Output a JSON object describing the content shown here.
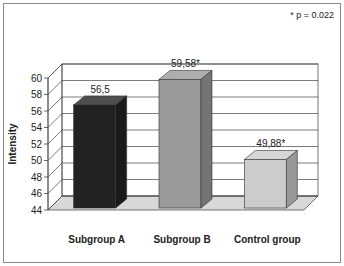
{
  "chart_data": {
    "type": "bar",
    "annotation": "* p = 0.022",
    "y_label": "Intensity",
    "categories": [
      "Subgroup A",
      "Subgroup B",
      "Control group"
    ],
    "values": [
      56.5,
      59.58,
      49.88
    ],
    "value_labels": [
      "56,5",
      "59,58*",
      "49,88*"
    ],
    "colors": [
      "#222222",
      "#9a9a9a",
      "#cccccc"
    ],
    "ylim": [
      44,
      60
    ],
    "yticks": [
      44,
      46,
      48,
      50,
      52,
      54,
      56,
      58,
      60
    ],
    "grid": true,
    "data_labels": true
  }
}
